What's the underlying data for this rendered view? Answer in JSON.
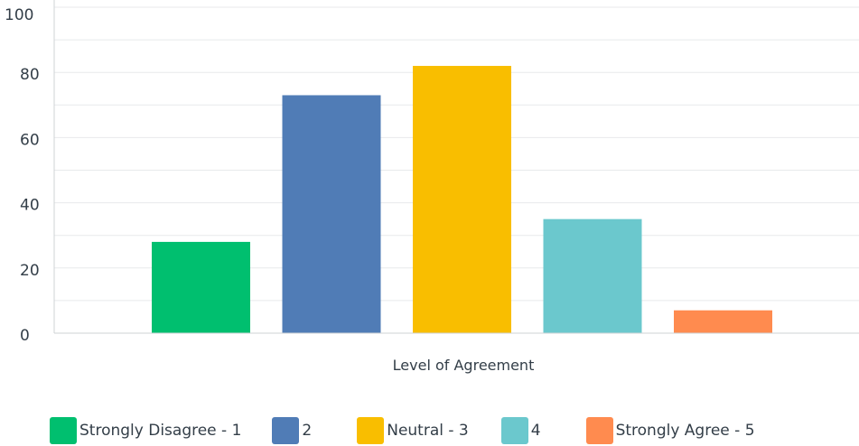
{
  "chart_data": {
    "type": "bar",
    "categories": [
      "Strongly Disagree - 1",
      "2",
      "Neutral - 3",
      "4",
      "Strongly Agree - 5"
    ],
    "values": [
      28,
      73,
      82,
      35,
      7
    ],
    "colors": [
      "#00bf6f",
      "#507cb6",
      "#f9be00",
      "#6bc8cd",
      "#ff8b4f"
    ],
    "title": "",
    "xlabel": "Level of Agreement",
    "ylabel": "",
    "ylim": [
      0,
      100
    ],
    "yticks": [
      "0",
      "20",
      "40",
      "60",
      "80",
      "100"
    ],
    "grid": true,
    "legend_position": "bottom"
  }
}
